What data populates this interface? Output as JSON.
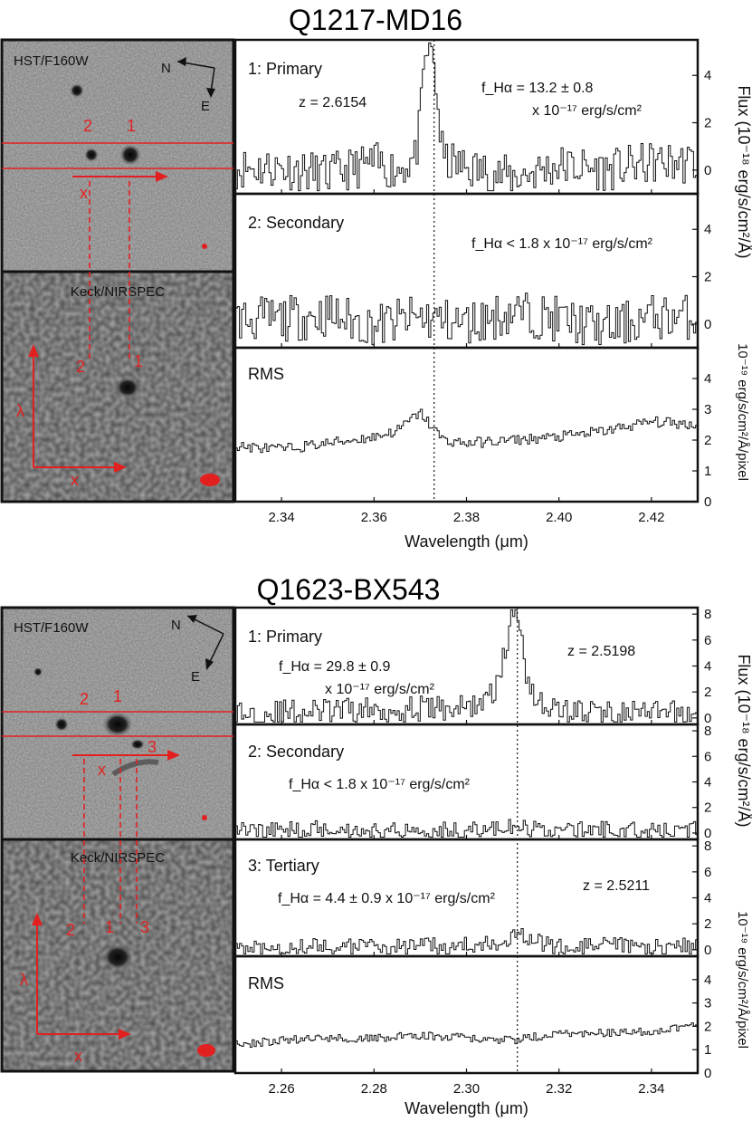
{
  "chart_data": [
    {
      "type": "line",
      "title": "Q1217-MD16",
      "xlabel": "Wavelength (μm)",
      "xlim": [
        2.33,
        2.43
      ],
      "xticks": [
        "2.34",
        "2.36",
        "2.38",
        "2.40",
        "2.42"
      ],
      "xtick_values": [
        2.34,
        2.36,
        2.38,
        2.4,
        2.42
      ],
      "flux_ylabel": "Flux (10⁻¹⁸ erg/s/cm²/Å)",
      "rms_ylabel": "10⁻¹⁹ erg/s/cm²/Å/pixel",
      "line_center": 2.373,
      "images": {
        "hst_label": "HST/F160W",
        "keck_label": "Keck/NIRSPEC",
        "compass_n": "N",
        "compass_e": "E",
        "x_label": "x",
        "lambda_label": "λ",
        "object_labels": [
          "2",
          "1"
        ],
        "keck_object_labels": [
          "2",
          "1"
        ]
      },
      "panels": [
        {
          "label": "1: Primary",
          "annotations": [
            "z = 2.6154",
            "f_Hα = 13.2 ± 0.8",
            "x 10⁻¹⁷ erg/s/cm²"
          ],
          "ylim": [
            -1,
            5.5
          ],
          "yticks": [
            "0",
            "2",
            "4"
          ],
          "ytick_values": [
            0,
            2,
            4
          ],
          "x": [
            2.34,
            2.35,
            2.36,
            2.365,
            2.369,
            2.37,
            2.371,
            2.372,
            2.373,
            2.374,
            2.375,
            2.38,
            2.39,
            2.4,
            2.41,
            2.42
          ],
          "y": [
            0.1,
            -0.2,
            0.3,
            0.0,
            0.5,
            2.0,
            4.6,
            5.4,
            4.5,
            2.2,
            0.4,
            0.1,
            -0.3,
            0.2,
            0.0,
            0.3
          ]
        },
        {
          "label": "2: Secondary",
          "annotations": [
            "f_Hα < 1.8 x 10⁻¹⁷ erg/s/cm²"
          ],
          "ylim": [
            -1,
            5.5
          ],
          "yticks": [
            "0",
            "2",
            "4"
          ],
          "ytick_values": [
            0,
            2,
            4
          ],
          "x": [
            2.34,
            2.35,
            2.36,
            2.37,
            2.38,
            2.39,
            2.4,
            2.41,
            2.42
          ],
          "y": [
            0.2,
            0.4,
            -0.1,
            0.3,
            0.0,
            0.5,
            0.2,
            -0.2,
            0.3
          ]
        },
        {
          "label": "RMS",
          "annotations": [],
          "ylim": [
            0,
            5
          ],
          "yticks": [
            "0",
            "1",
            "2",
            "3",
            "4"
          ],
          "ytick_values": [
            0,
            1,
            2,
            3,
            4
          ],
          "x": [
            2.33,
            2.34,
            2.35,
            2.36,
            2.365,
            2.37,
            2.375,
            2.38,
            2.39,
            2.4,
            2.41,
            2.42,
            2.43
          ],
          "y": [
            1.8,
            1.7,
            1.9,
            2.1,
            2.3,
            2.9,
            2.0,
            1.9,
            2.0,
            2.1,
            2.3,
            2.6,
            2.5
          ]
        }
      ]
    },
    {
      "type": "line",
      "title": "Q1623-BX543",
      "xlabel": "Wavelength (μm)",
      "xlim": [
        2.25,
        2.35
      ],
      "xticks": [
        "2.26",
        "2.28",
        "2.30",
        "2.32",
        "2.34"
      ],
      "xtick_values": [
        2.26,
        2.28,
        2.3,
        2.32,
        2.34
      ],
      "flux_ylabel": "Flux (10⁻¹⁸ erg/s/cm²/Å)",
      "rms_ylabel": "10⁻¹⁹ erg/s/cm²/Å/pixel",
      "line_center": 2.311,
      "images": {
        "hst_label": "HST/F160W",
        "keck_label": "Keck/NIRSPEC",
        "compass_n": "N",
        "compass_e": "E",
        "x_label": "x",
        "lambda_label": "λ",
        "object_labels": [
          "2",
          "1",
          "3"
        ],
        "keck_object_labels": [
          "2",
          "1",
          "3"
        ]
      },
      "panels": [
        {
          "label": "1: Primary",
          "annotations": [
            "f_Hα = 29.8 ± 0.9",
            "x 10⁻¹⁷ erg/s/cm²",
            "z = 2.5198"
          ],
          "ylim": [
            -0.5,
            8.5
          ],
          "yticks": [
            "0",
            "2",
            "4",
            "6",
            "8"
          ],
          "ytick_values": [
            0,
            2,
            4,
            6,
            8
          ],
          "x": [
            2.25,
            2.26,
            2.28,
            2.3,
            2.305,
            2.307,
            2.309,
            2.31,
            2.311,
            2.312,
            2.313,
            2.315,
            2.318,
            2.32,
            2.33,
            2.34,
            2.35
          ],
          "y": [
            0.3,
            0.4,
            0.6,
            0.8,
            1.5,
            3.0,
            6.0,
            8.0,
            8.4,
            6.5,
            3.5,
            1.5,
            0.8,
            0.6,
            0.4,
            0.3,
            0.3
          ]
        },
        {
          "label": "2: Secondary",
          "annotations": [
            "f_Hα < 1.8 x 10⁻¹⁷ erg/s/cm²"
          ],
          "ylim": [
            -0.5,
            8.5
          ],
          "yticks": [
            "0",
            "2",
            "4",
            "6",
            "8"
          ],
          "ytick_values": [
            0,
            2,
            4,
            6,
            8
          ],
          "x": [
            2.25,
            2.26,
            2.27,
            2.28,
            2.29,
            2.3,
            2.31,
            2.32,
            2.33,
            2.34,
            2.35
          ],
          "y": [
            0.3,
            0.2,
            0.4,
            0.1,
            0.3,
            0.2,
            0.4,
            0.2,
            0.3,
            0.1,
            0.3
          ]
        },
        {
          "label": "3: Tertiary",
          "annotations": [
            "f_Hα = 4.4 ± 0.9 x 10⁻¹⁷ erg/s/cm²",
            "z = 2.5211"
          ],
          "ylim": [
            -0.5,
            8.5
          ],
          "yticks": [
            "0",
            "2",
            "4",
            "6",
            "8"
          ],
          "ytick_values": [
            0,
            2,
            4,
            6,
            8
          ],
          "x": [
            2.25,
            2.26,
            2.28,
            2.3,
            2.305,
            2.309,
            2.311,
            2.313,
            2.317,
            2.32,
            2.33,
            2.34,
            2.35
          ],
          "y": [
            0.2,
            0.3,
            0.2,
            0.3,
            0.4,
            0.9,
            1.6,
            1.0,
            0.4,
            0.2,
            0.3,
            0.2,
            0.3
          ]
        },
        {
          "label": "RMS",
          "annotations": [],
          "ylim": [
            0,
            5
          ],
          "yticks": [
            "0",
            "1",
            "2",
            "3",
            "4"
          ],
          "ytick_values": [
            0,
            1,
            2,
            3,
            4
          ],
          "x": [
            2.25,
            2.26,
            2.27,
            2.28,
            2.29,
            2.3,
            2.31,
            2.32,
            2.33,
            2.34,
            2.35
          ],
          "y": [
            1.2,
            1.4,
            1.5,
            1.5,
            1.6,
            1.5,
            1.4,
            1.7,
            1.7,
            1.8,
            2.0
          ]
        }
      ]
    }
  ]
}
